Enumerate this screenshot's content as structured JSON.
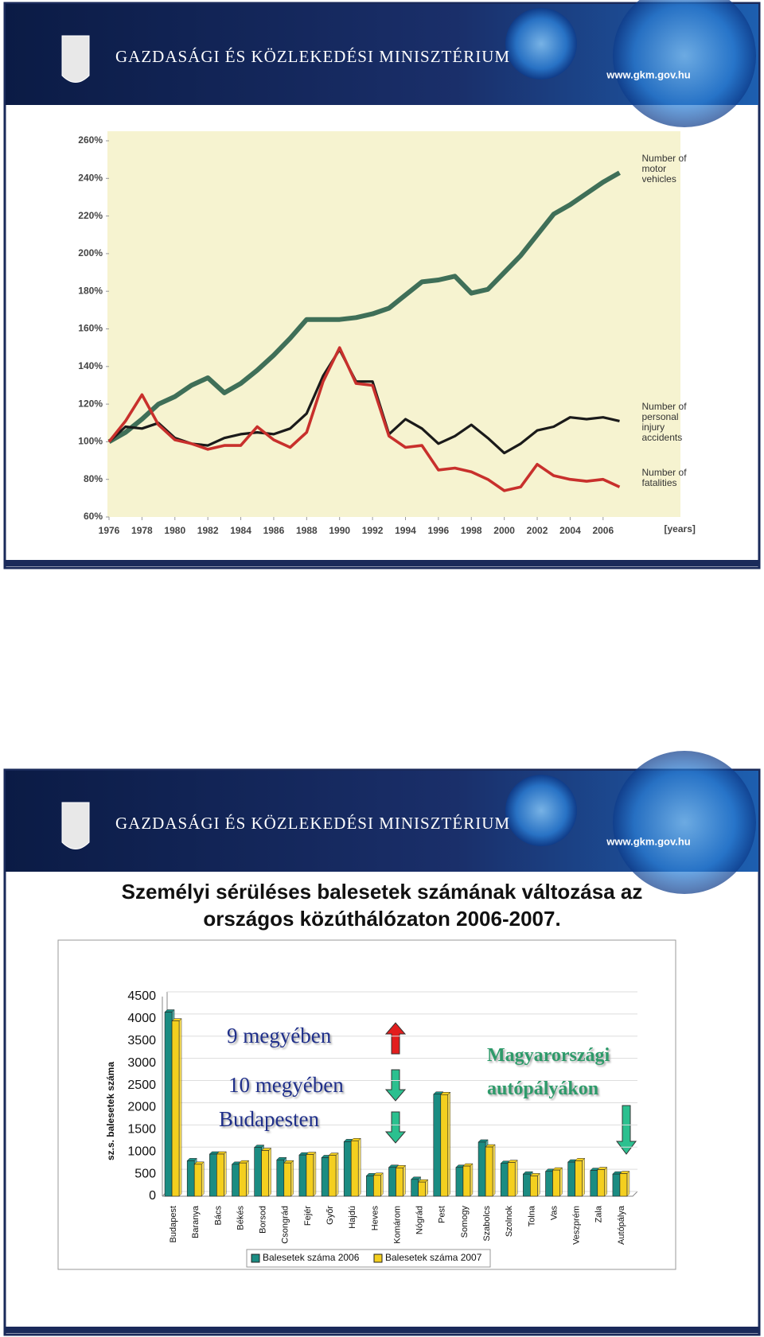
{
  "header": {
    "ministry": "GAZDASÁGI ÉS KÖZLEKEDÉSI MINISZTÉRIUM",
    "url": "www.gkm.gov.hu"
  },
  "chart_data": [
    {
      "type": "line",
      "x_label": "[years]",
      "x": [
        1976,
        1977,
        1978,
        1979,
        1980,
        1981,
        1982,
        1983,
        1984,
        1985,
        1986,
        1987,
        1988,
        1989,
        1990,
        1991,
        1992,
        1993,
        1994,
        1995,
        1996,
        1997,
        1998,
        1999,
        2000,
        2001,
        2002,
        2003,
        2004,
        2005,
        2006,
        2007
      ],
      "series": [
        {
          "name": "Number of motor vehicles",
          "color": "#3f6f58",
          "width": 6,
          "values": [
            100,
            105,
            112,
            120,
            124,
            130,
            134,
            126,
            131,
            138,
            146,
            155,
            165,
            165,
            165,
            166,
            168,
            171,
            178,
            185,
            186,
            188,
            179,
            181,
            190,
            199,
            210,
            221,
            226,
            232,
            238,
            243
          ]
        },
        {
          "name": "Number of personal injury accidents",
          "color": "#1a1a1a",
          "width": 3.2,
          "values": [
            100,
            108,
            107,
            110,
            102,
            99,
            98,
            102,
            104,
            105,
            104,
            107,
            115,
            135,
            149,
            132,
            132,
            104,
            112,
            107,
            99,
            103,
            109,
            102,
            94,
            99,
            106,
            108,
            113,
            112,
            113,
            111
          ]
        },
        {
          "name": "Number of fatalities",
          "color": "#c8302c",
          "width": 3.6,
          "values": [
            100,
            111,
            125,
            109,
            101,
            99,
            96,
            98,
            98,
            108,
            101,
            97,
            105,
            132,
            150,
            131,
            130,
            103,
            97,
            98,
            85,
            86,
            84,
            80,
            74,
            76,
            88,
            82,
            80,
            79,
            80,
            76
          ]
        }
      ],
      "xlim": [
        1976,
        2010.6
      ],
      "xticks": [
        1976,
        1978,
        1980,
        1982,
        1984,
        1986,
        1988,
        1990,
        1992,
        1994,
        1996,
        1998,
        2000,
        2002,
        2004,
        2006
      ],
      "ylim": [
        60,
        260
      ],
      "yticks": [
        {
          "value": 60,
          "label": "60%"
        },
        {
          "value": 80,
          "label": "80%"
        },
        {
          "value": 100,
          "label": "100%"
        },
        {
          "value": 120,
          "label": "120%"
        },
        {
          "value": 140,
          "label": "140%"
        },
        {
          "value": 160,
          "label": "160%"
        },
        {
          "value": 180,
          "label": "180%"
        },
        {
          "value": 200,
          "label": "200%"
        },
        {
          "value": 220,
          "label": "220%"
        },
        {
          "value": 240,
          "label": "240%"
        },
        {
          "value": 260,
          "label": "260%"
        }
      ],
      "grid": false,
      "background": "#f6f3d0"
    },
    {
      "type": "bar",
      "title": "Személyi sérüléses balesetek számának változása az országos közúthálózaton 2006-2007.",
      "y_label": "sz.s. balesetek száma",
      "categories": [
        "Budapest",
        "Baranya",
        "Bács",
        "Békés",
        "Borsod",
        "Csongrád",
        "Fejér",
        "Győr",
        "Hajdú",
        "Heves",
        "Komárom",
        "Nógrád",
        "Pest",
        "Somogy",
        "Szabolcs",
        "Szolnok",
        "Tolna",
        "Vas",
        "Veszprém",
        "Zala",
        "Autópálya"
      ],
      "series": [
        {
          "name": "Balesetek száma 2006",
          "color": "#1b8c82",
          "values": [
            4150,
            800,
            950,
            720,
            1100,
            820,
            930,
            870,
            1230,
            460,
            650,
            380,
            2300,
            650,
            1220,
            740,
            500,
            560,
            770,
            580,
            500
          ]
        },
        {
          "name": "Balesetek száma 2007",
          "color": "#f4cf1f",
          "values": [
            3950,
            720,
            950,
            750,
            1030,
            750,
            940,
            920,
            1250,
            470,
            640,
            320,
            2290,
            680,
            1110,
            760,
            460,
            590,
            800,
            600,
            510
          ]
        }
      ],
      "ylim": [
        0,
        4500
      ],
      "yticks": [
        0,
        500,
        1000,
        1500,
        2000,
        2500,
        3000,
        3500,
        4000,
        4500
      ],
      "grid": true,
      "legend": "bottom",
      "annotations": [
        "9 megyében",
        "10 megyében",
        "Budapesten",
        "Magyarországi autópályákon"
      ]
    }
  ]
}
